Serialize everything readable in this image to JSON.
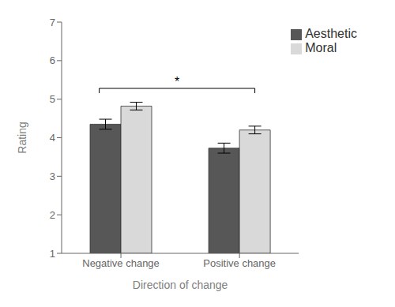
{
  "chart_data": {
    "type": "bar",
    "xlabel": "Direction of change",
    "ylabel": "Rating",
    "categories": [
      "Negative change",
      "Positive change"
    ],
    "series": [
      {
        "name": "Aesthetic",
        "color": "#575757",
        "values": [
          4.35,
          3.73
        ],
        "errors": [
          0.13,
          0.13
        ]
      },
      {
        "name": "Moral",
        "color": "#d9d9d9",
        "values": [
          4.82,
          4.2
        ],
        "errors": [
          0.1,
          0.1
        ]
      }
    ],
    "ylim": [
      1,
      7
    ],
    "yticks": [
      1,
      2,
      3,
      4,
      5,
      6,
      7
    ],
    "legend": "upper right",
    "grid": false,
    "annotations": [
      {
        "text": "*",
        "series": "Moral",
        "categories": [
          "Negative change",
          "Positive change"
        ],
        "y": 5.28
      }
    ]
  }
}
